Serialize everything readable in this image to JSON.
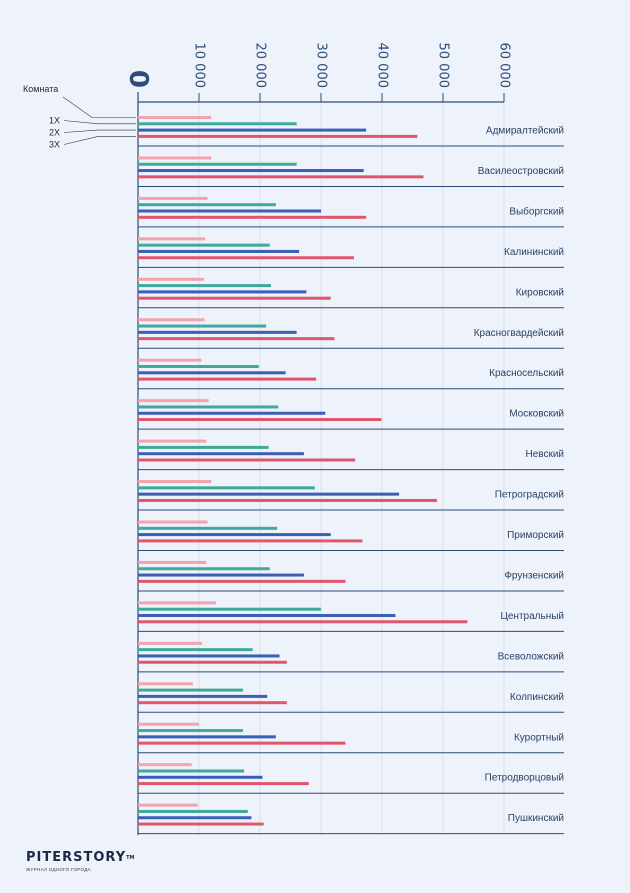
{
  "chart_data": {
    "type": "bar",
    "orientation": "horizontal",
    "title": "",
    "xlabel": "",
    "ylabel": "",
    "xlim": [
      0,
      60000
    ],
    "grid": true,
    "tick_values": [
      0,
      10000,
      20000,
      30000,
      40000,
      50000,
      60000
    ],
    "tick_labels": [
      "0",
      "10 000",
      "20 000",
      "30 000",
      "40 000",
      "50 000",
      "60 000"
    ],
    "legend_title": "Комната",
    "categories": [
      "Адмиралтейский",
      "Василеостровский",
      "Выборгский",
      "Калининский",
      "Кировский",
      "Красногвардейский",
      "Красносельский",
      "Московский",
      "Невский",
      "Петроградский",
      "Приморский",
      "Фрунзенский",
      "Центральный",
      "Всеволожский",
      "Колпинский",
      "Курортный",
      "Петродворцовый",
      "Пушкинский"
    ],
    "series": [
      {
        "name": "",
        "color": "#f2a3ad",
        "values": [
          12000,
          12000,
          11400,
          11000,
          10800,
          10900,
          10400,
          11600,
          11200,
          12000,
          11400,
          11200,
          12800,
          10500,
          9000,
          10000,
          8800,
          9800
        ]
      },
      {
        "name": "1Х",
        "color": "#3fa99b",
        "values": [
          26000,
          26000,
          22600,
          21600,
          21800,
          21000,
          19800,
          23000,
          21400,
          29000,
          22800,
          21600,
          30000,
          18800,
          17200,
          17200,
          17400,
          18000
        ]
      },
      {
        "name": "2Х",
        "color": "#3c5fb5",
        "values": [
          37400,
          37000,
          30000,
          26400,
          27600,
          26000,
          24200,
          30700,
          27200,
          42800,
          31600,
          27200,
          42200,
          23200,
          21200,
          22600,
          20400,
          18600
        ]
      },
      {
        "name": "3Х",
        "color": "#e0566b",
        "values": [
          45800,
          46800,
          37400,
          35400,
          31600,
          32200,
          29200,
          39900,
          35600,
          49000,
          36800,
          34000,
          54000,
          24400,
          24400,
          34000,
          28000,
          20600
        ]
      }
    ]
  },
  "brand": {
    "logo": "PITERSTORY",
    "tm": "TM",
    "tagline": "журнал одного города"
  }
}
